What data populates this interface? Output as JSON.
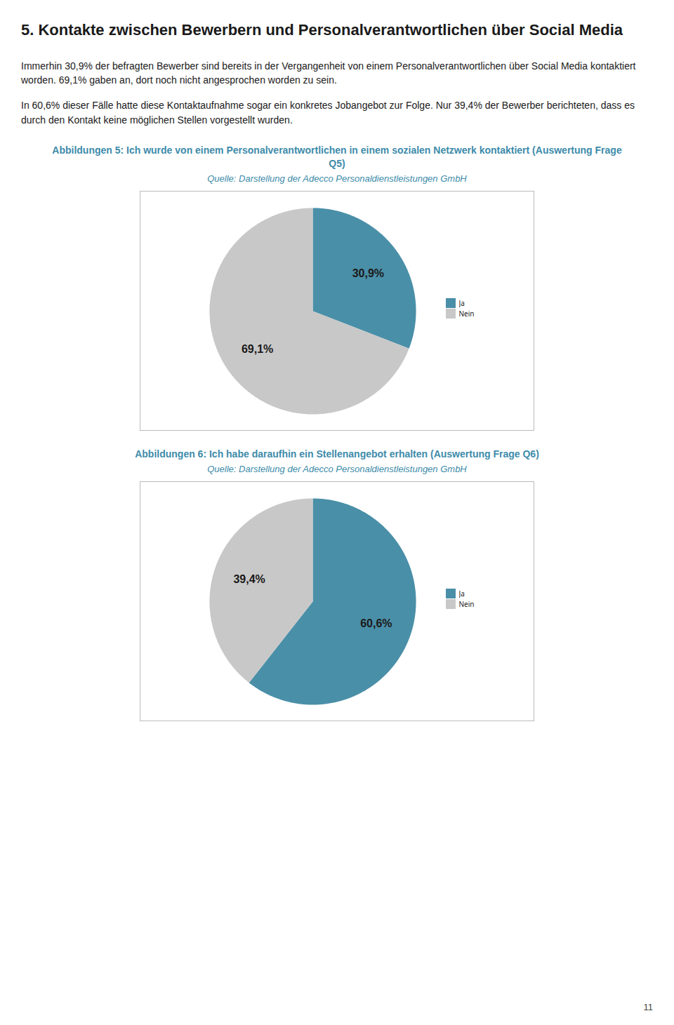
{
  "title": "5. Kontakte zwischen Bewerbern und Personalverantwortlichen über Social Media",
  "annotations": [
    "Immerhin 30,9% der befragten Bewerber sind bereits in der Vergangenheit von einem Personalverantwortlichen über Social Media kontaktiert worden. 69,1% gaben an, dort noch nicht angesprochen worden zu sein.",
    "In 60,6% dieser Fälle hatte diese Kontaktaufnahme sogar ein konkretes Jobangebot zur Folge. Nur 39,4% der Bewerber berichteten, dass es durch den Kontakt keine möglichen Stellen vorgestellt wurden.",
    "11"
  ],
  "chart_data": [
    {
      "type": "pie",
      "title": "Abbildungen 5: Ich wurde von einem Personalverantwortlichen in einem sozialen Netzwerk kontaktiert (Auswertung Frage Q5)",
      "subtitle": "Quelle: Darstellung der Adecco Personaldienstleistungen GmbH",
      "categories": [
        "Ja",
        "Nein"
      ],
      "values": [
        30.9,
        69.1
      ],
      "value_labels": [
        "30,9%",
        "69,1%"
      ],
      "colors": [
        "#4a8fa8",
        "#c8c8c8"
      ],
      "data_labels": true,
      "legend": "right"
    },
    {
      "type": "pie",
      "title": "Abbildungen 6: Ich habe daraufhin ein Stellenangebot erhalten (Auswertung Frage Q6)",
      "subtitle": "Quelle: Darstellung der Adecco Personaldienstleistungen GmbH",
      "categories": [
        "Ja",
        "Nein"
      ],
      "values": [
        60.6,
        39.4
      ],
      "value_labels": [
        "60,6%",
        "39,4%"
      ],
      "colors": [
        "#4a8fa8",
        "#c8c8c8"
      ],
      "data_labels": true,
      "legend": "right"
    }
  ]
}
